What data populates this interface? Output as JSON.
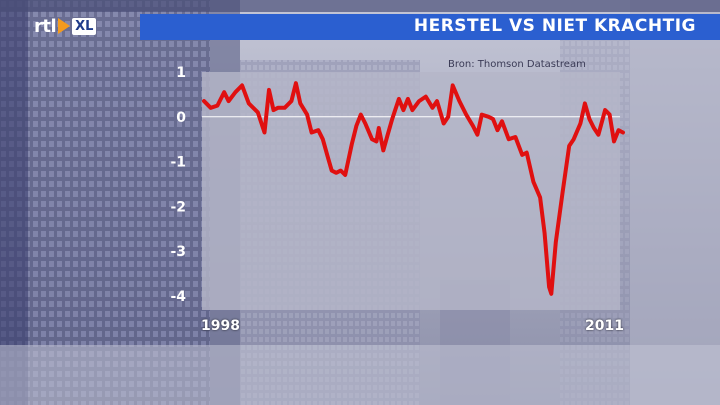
{
  "header": {
    "title": "HERSTEL VS NIET KRACHTIG"
  },
  "logo": {
    "rtl_text": "rtl",
    "xl_text": "XL"
  },
  "source_note": "Bron: Thomson Datastream",
  "colors": {
    "accent": "#2b5fd0",
    "line": "#e01010",
    "plot_bg": "#b4b6c8"
  },
  "chart_data": {
    "type": "line",
    "title": "HERSTEL VS NIET KRACHTIG",
    "xlabel": "",
    "ylabel": "",
    "x_tick_labels": [
      "1998",
      "2011"
    ],
    "x_range": [
      1998,
      2011
    ],
    "ylim": [
      -4.3,
      1.0
    ],
    "y_ticks": [
      1,
      0,
      -1,
      -2,
      -3,
      -4
    ],
    "y_tick_labels": [
      "1",
      "0",
      "-1",
      "-2",
      "-3",
      "-4"
    ],
    "grid": "horizontal line at 0 only",
    "legend": "none",
    "series": [
      {
        "values": [
          [
            1998.0,
            0.35
          ],
          [
            1998.15,
            0.2
          ],
          [
            1998.3,
            0.25
          ],
          [
            1998.45,
            0.55
          ],
          [
            1998.55,
            0.35
          ],
          [
            1998.7,
            0.55
          ],
          [
            1998.85,
            0.7
          ],
          [
            1999.0,
            0.3
          ],
          [
            1999.2,
            0.1
          ],
          [
            1999.35,
            -0.35
          ],
          [
            1999.45,
            0.6
          ],
          [
            1999.55,
            0.15
          ],
          [
            1999.65,
            0.2
          ],
          [
            1999.8,
            0.2
          ],
          [
            1999.95,
            0.35
          ],
          [
            2000.05,
            0.75
          ],
          [
            2000.15,
            0.3
          ],
          [
            2000.3,
            0.05
          ],
          [
            2000.4,
            -0.35
          ],
          [
            2000.55,
            -0.3
          ],
          [
            2000.65,
            -0.5
          ],
          [
            2000.75,
            -0.85
          ],
          [
            2000.85,
            -1.2
          ],
          [
            2000.95,
            -1.25
          ],
          [
            2001.05,
            -1.2
          ],
          [
            2001.15,
            -1.3
          ],
          [
            2001.3,
            -0.6
          ],
          [
            2001.4,
            -0.2
          ],
          [
            2001.5,
            0.05
          ],
          [
            2001.6,
            -0.15
          ],
          [
            2001.75,
            -0.5
          ],
          [
            2001.85,
            -0.55
          ],
          [
            2001.9,
            -0.25
          ],
          [
            2002.0,
            -0.75
          ],
          [
            2002.1,
            -0.4
          ],
          [
            2002.2,
            -0.05
          ],
          [
            2002.35,
            0.4
          ],
          [
            2002.45,
            0.15
          ],
          [
            2002.55,
            0.4
          ],
          [
            2002.65,
            0.15
          ],
          [
            2002.8,
            0.35
          ],
          [
            2002.95,
            0.45
          ],
          [
            2003.1,
            0.2
          ],
          [
            2003.2,
            0.35
          ],
          [
            2003.35,
            -0.15
          ],
          [
            2003.45,
            0.0
          ],
          [
            2003.55,
            0.7
          ],
          [
            2003.7,
            0.35
          ],
          [
            2003.85,
            0.05
          ],
          [
            2004.0,
            -0.2
          ],
          [
            2004.1,
            -0.4
          ],
          [
            2004.2,
            0.05
          ],
          [
            2004.35,
            0.0
          ],
          [
            2004.45,
            -0.05
          ],
          [
            2004.55,
            -0.3
          ],
          [
            2004.65,
            -0.1
          ],
          [
            2004.8,
            -0.5
          ],
          [
            2004.95,
            -0.45
          ],
          [
            2005.1,
            -0.85
          ],
          [
            2005.2,
            -0.8
          ],
          [
            2005.35,
            -1.45
          ],
          [
            2005.5,
            -1.8
          ],
          [
            2005.6,
            -2.6
          ],
          [
            2005.7,
            -3.8
          ],
          [
            2005.75,
            -3.95
          ],
          [
            2005.85,
            -2.8
          ],
          [
            2006.0,
            -1.7
          ],
          [
            2006.15,
            -0.65
          ],
          [
            2006.25,
            -0.5
          ],
          [
            2006.4,
            -0.15
          ],
          [
            2006.5,
            0.3
          ],
          [
            2006.6,
            -0.05
          ],
          [
            2006.7,
            -0.25
          ],
          [
            2006.8,
            -0.4
          ],
          [
            2006.95,
            0.15
          ],
          [
            2007.05,
            0.05
          ],
          [
            2007.15,
            -0.55
          ],
          [
            2007.25,
            -0.3
          ],
          [
            2007.35,
            -0.35
          ]
        ]
      }
    ]
  }
}
